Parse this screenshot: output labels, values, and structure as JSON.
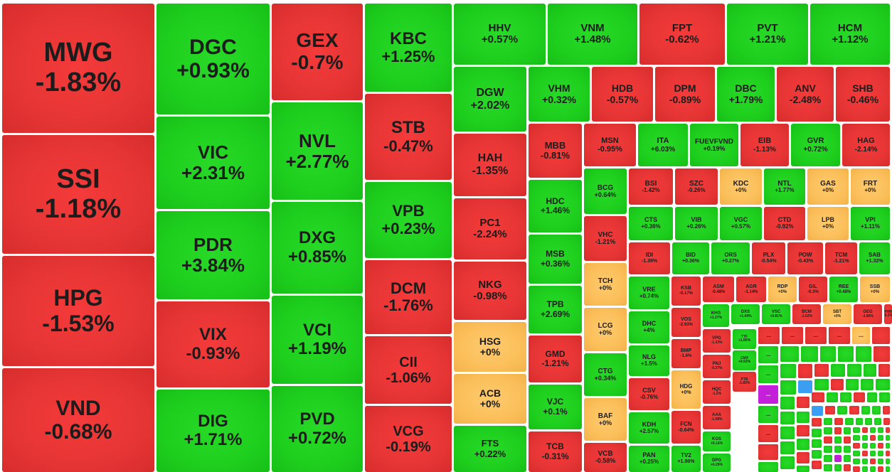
{
  "colors": {
    "red": "#e63535",
    "green": "#1ecf1e",
    "yellow": "#fbbf5a",
    "purple": "#c41fd9",
    "blue": "#3a9ef2"
  },
  "truncated_symbol": "...",
  "tiles": [
    {
      "symbol": "MWG",
      "change": "-1.83%",
      "color": "red"
    },
    {
      "symbol": "SSI",
      "change": "-1.18%",
      "color": "red"
    },
    {
      "symbol": "HPG",
      "change": "-1.53%",
      "color": "red"
    },
    {
      "symbol": "VND",
      "change": "-0.68%",
      "color": "red"
    },
    {
      "symbol": "DGC",
      "change": "+0.93%",
      "color": "green"
    },
    {
      "symbol": "VIC",
      "change": "+2.31%",
      "color": "green"
    },
    {
      "symbol": "PDR",
      "change": "+3.84%",
      "color": "green"
    },
    {
      "symbol": "VIX",
      "change": "-0.93%",
      "color": "red"
    },
    {
      "symbol": "DIG",
      "change": "+1.71%",
      "color": "green"
    },
    {
      "symbol": "GEX",
      "change": "-0.7%",
      "color": "red"
    },
    {
      "symbol": "NVL",
      "change": "+2.77%",
      "color": "green"
    },
    {
      "symbol": "DXG",
      "change": "+0.85%",
      "color": "green"
    },
    {
      "symbol": "VCI",
      "change": "+1.19%",
      "color": "green"
    },
    {
      "symbol": "PVD",
      "change": "+0.72%",
      "color": "green"
    },
    {
      "symbol": "KBC",
      "change": "+1.25%",
      "color": "green"
    },
    {
      "symbol": "STB",
      "change": "-0.47%",
      "color": "red"
    },
    {
      "symbol": "VPB",
      "change": "+0.23%",
      "color": "green"
    },
    {
      "symbol": "DCM",
      "change": "-1.76%",
      "color": "red"
    },
    {
      "symbol": "CII",
      "change": "-1.06%",
      "color": "red"
    },
    {
      "symbol": "VCG",
      "change": "-0.19%",
      "color": "red"
    },
    {
      "symbol": "HHV",
      "change": "+0.57%",
      "color": "green"
    },
    {
      "symbol": "VNM",
      "change": "+1.48%",
      "color": "green"
    },
    {
      "symbol": "FPT",
      "change": "-0.62%",
      "color": "red"
    },
    {
      "symbol": "PVT",
      "change": "+1.21%",
      "color": "green"
    },
    {
      "symbol": "HCM",
      "change": "+1.12%",
      "color": "green"
    },
    {
      "symbol": "DGW",
      "change": "+2.02%",
      "color": "green"
    },
    {
      "symbol": "HAH",
      "change": "-1.35%",
      "color": "red"
    },
    {
      "symbol": "PC1",
      "change": "-2.24%",
      "color": "red"
    },
    {
      "symbol": "NKG",
      "change": "-0.98%",
      "color": "red"
    },
    {
      "symbol": "HSG",
      "change": "+0%",
      "color": "yellow"
    },
    {
      "symbol": "ACB",
      "change": "+0%",
      "color": "yellow"
    },
    {
      "symbol": "FTS",
      "change": "+0.22%",
      "color": "green"
    },
    {
      "symbol": "VHM",
      "change": "+0.32%",
      "color": "green"
    },
    {
      "symbol": "HDB",
      "change": "-0.57%",
      "color": "red"
    },
    {
      "symbol": "DPM",
      "change": "-0.89%",
      "color": "red"
    },
    {
      "symbol": "DBC",
      "change": "+1.79%",
      "color": "green"
    },
    {
      "symbol": "ANV",
      "change": "-2.48%",
      "color": "red"
    },
    {
      "symbol": "SHB",
      "change": "-0.46%",
      "color": "red"
    },
    {
      "symbol": "MBB",
      "change": "-0.81%",
      "color": "red"
    },
    {
      "symbol": "HDC",
      "change": "+1.46%",
      "color": "green"
    },
    {
      "symbol": "MSB",
      "change": "+0.36%",
      "color": "green"
    },
    {
      "symbol": "TPB",
      "change": "+2.69%",
      "color": "green"
    },
    {
      "symbol": "GMD",
      "change": "-1.21%",
      "color": "red"
    },
    {
      "symbol": "VJC",
      "change": "+0.1%",
      "color": "green"
    },
    {
      "symbol": "TCB",
      "change": "-0.31%",
      "color": "red"
    },
    {
      "symbol": "MSN",
      "change": "-0.95%",
      "color": "red"
    },
    {
      "symbol": "ITA",
      "change": "+6.03%",
      "color": "green"
    },
    {
      "symbol": "FUEVFVND",
      "change": "+0.19%",
      "color": "green"
    },
    {
      "symbol": "EIB",
      "change": "-1.13%",
      "color": "red"
    },
    {
      "symbol": "GVR",
      "change": "+0.72%",
      "color": "green"
    },
    {
      "symbol": "HAG",
      "change": "-2.14%",
      "color": "red"
    },
    {
      "symbol": "BCG",
      "change": "+0.64%",
      "color": "green"
    },
    {
      "symbol": "VHC",
      "change": "-1.21%",
      "color": "red"
    },
    {
      "symbol": "TCH",
      "change": "+0%",
      "color": "yellow"
    },
    {
      "symbol": "LCG",
      "change": "+0%",
      "color": "yellow"
    },
    {
      "symbol": "CTG",
      "change": "+0.34%",
      "color": "green"
    },
    {
      "symbol": "BAF",
      "change": "+0%",
      "color": "yellow"
    },
    {
      "symbol": "VCB",
      "change": "-0.58%",
      "color": "red"
    },
    {
      "symbol": "BSI",
      "change": "-1.42%",
      "color": "red"
    },
    {
      "symbol": "SZC",
      "change": "-0.26%",
      "color": "red"
    },
    {
      "symbol": "KDC",
      "change": "+0%",
      "color": "yellow"
    },
    {
      "symbol": "NTL",
      "change": "+1.77%",
      "color": "green"
    },
    {
      "symbol": "GAS",
      "change": "+0%",
      "color": "yellow"
    },
    {
      "symbol": "FRT",
      "change": "+0%",
      "color": "yellow"
    },
    {
      "symbol": "CTS",
      "change": "+0.36%",
      "color": "green"
    },
    {
      "symbol": "VIB",
      "change": "+0.26%",
      "color": "green"
    },
    {
      "symbol": "VGC",
      "change": "+0.57%",
      "color": "green"
    },
    {
      "symbol": "CTD",
      "change": "-0.92%",
      "color": "red"
    },
    {
      "symbol": "LPB",
      "change": "+0%",
      "color": "yellow"
    },
    {
      "symbol": "VPI",
      "change": "+1.11%",
      "color": "green"
    },
    {
      "symbol": "IDI",
      "change": "-1.39%",
      "color": "red"
    },
    {
      "symbol": "BID",
      "change": "+0.36%",
      "color": "green"
    },
    {
      "symbol": "ORS",
      "change": "+0.27%",
      "color": "green"
    },
    {
      "symbol": "PLX",
      "change": "-0.54%",
      "color": "red"
    },
    {
      "symbol": "POW",
      "change": "-0.43%",
      "color": "red"
    },
    {
      "symbol": "TCM",
      "change": "-1.21%",
      "color": "red"
    },
    {
      "symbol": "SAB",
      "change": "+1.32%",
      "color": "green"
    },
    {
      "symbol": "VRE",
      "change": "+0.74%",
      "color": "green"
    },
    {
      "symbol": "DHC",
      "change": "+4%",
      "color": "green"
    },
    {
      "symbol": "NLG",
      "change": "+1.5%",
      "color": "green"
    },
    {
      "symbol": "CSV",
      "change": "-0.76%",
      "color": "red"
    },
    {
      "symbol": "KDH",
      "change": "+2.57%",
      "color": "green"
    },
    {
      "symbol": "PAN",
      "change": "+0.25%",
      "color": "green"
    },
    {
      "symbol": "KSB",
      "change": "-0.17%",
      "color": "red"
    },
    {
      "symbol": "VOS",
      "change": "-2.93%",
      "color": "red"
    },
    {
      "symbol": "BMP",
      "change": "-1.6%",
      "color": "red"
    },
    {
      "symbol": "HDG",
      "change": "+0%",
      "color": "yellow"
    },
    {
      "symbol": "FCN",
      "change": "-0.64%",
      "color": "red"
    },
    {
      "symbol": "TV2",
      "change": "+1.86%",
      "color": "green"
    },
    {
      "symbol": "ASM",
      "change": "-0.48%",
      "color": "red"
    },
    {
      "symbol": "AGR",
      "change": "-1.14%",
      "color": "red"
    },
    {
      "symbol": "RDP",
      "change": "+0%",
      "color": "yellow"
    },
    {
      "symbol": "GIL",
      "change": "-0.3%",
      "color": "red"
    },
    {
      "symbol": "REE",
      "change": "+0.48%",
      "color": "green"
    },
    {
      "symbol": "SSB",
      "change": "+0%",
      "color": "yellow"
    },
    {
      "symbol": "KHG",
      "change": "+1.27%",
      "color": "green"
    },
    {
      "symbol": "DXS",
      "change": "+1.04%",
      "color": "green"
    },
    {
      "symbol": "VSC",
      "change": "+0.81%",
      "color": "green"
    },
    {
      "symbol": "BCM",
      "change": "-1.02%",
      "color": "red"
    },
    {
      "symbol": "SBT",
      "change": "+0%",
      "color": "yellow"
    },
    {
      "symbol": "GEG",
      "change": "-1.86%",
      "color": "red"
    },
    {
      "symbol": "PHR",
      "change": "-0.2%",
      "color": "red"
    },
    {
      "symbol": "VPG",
      "change": "-1.33%",
      "color": "red"
    },
    {
      "symbol": "PNJ",
      "change": "-0.37%",
      "color": "red"
    },
    {
      "symbol": "HQC",
      "change": "-1.2%",
      "color": "red"
    },
    {
      "symbol": "AAA",
      "change": "-1.08%",
      "color": "red"
    },
    {
      "symbol": "KOS",
      "change": "+0.15%",
      "color": "green"
    },
    {
      "symbol": "DPG",
      "change": "+0.29%",
      "color": "green"
    },
    {
      "symbol": "TTF",
      "change": "+1.85%",
      "color": "green"
    },
    {
      "symbol": "CMX",
      "change": "+0.62%",
      "color": "green"
    },
    {
      "symbol": "PTB",
      "change": "-1.85%",
      "color": "red"
    }
  ]
}
